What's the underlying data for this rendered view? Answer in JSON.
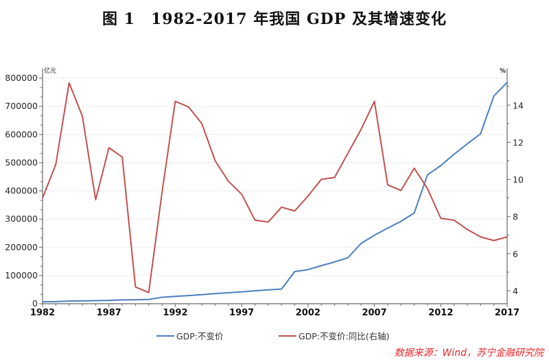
{
  "title": "图 1　1982-2017 年我国 GDP 及其增速变化",
  "source": "数据来源：Wind，苏宁金融研究院",
  "chart_data": {
    "type": "line",
    "title": "图 1　1982-2017 年我国 GDP 及其增速变化",
    "x": [
      1982,
      1983,
      1984,
      1985,
      1986,
      1987,
      1988,
      1989,
      1990,
      1991,
      1992,
      1993,
      1994,
      1995,
      1996,
      1997,
      1998,
      1999,
      2000,
      2001,
      2002,
      2003,
      2004,
      2005,
      2006,
      2007,
      2008,
      2009,
      2010,
      2011,
      2012,
      2013,
      2014,
      2015,
      2016,
      2017
    ],
    "x_ticks": [
      "1982",
      "1987",
      "1992",
      "1997",
      "2002",
      "2007",
      "2012",
      "2017"
    ],
    "xlim": [
      1982,
      2017
    ],
    "left_axis": {
      "unit": "亿元",
      "ylim": [
        0,
        800000
      ],
      "ticks": [
        "0",
        "100000",
        "200000",
        "300000",
        "400000",
        "500000",
        "600000",
        "700000",
        "800000"
      ]
    },
    "right_axis": {
      "unit": "%",
      "ylim": [
        3.3,
        15.45
      ],
      "ticks": [
        "4",
        "6",
        "8",
        "10",
        "12",
        "14"
      ]
    },
    "grid": true,
    "legend_position": "bottom",
    "series": [
      {
        "name": "GDP:不变价",
        "axis": "left",
        "color": "#4a7ebf",
        "values": [
          7000,
          7500,
          9500,
          10000,
          11000,
          12000,
          13500,
          14000,
          15000,
          23000,
          26000,
          29000,
          32000,
          36000,
          39000,
          42000,
          46000,
          49000,
          52000,
          114000,
          121000,
          135000,
          148000,
          163000,
          214000,
          243000,
          268000,
          292000,
          322000,
          457000,
          490000,
          530000,
          567000,
          603000,
          737000,
          785000
        ]
      },
      {
        "name": "GDP:不变价:同比(右轴)",
        "axis": "right",
        "color": "#c0504d",
        "values": [
          9.0,
          10.8,
          15.2,
          13.4,
          8.9,
          11.7,
          11.2,
          4.2,
          3.9,
          9.3,
          14.2,
          13.9,
          13.0,
          11.0,
          9.9,
          9.2,
          7.8,
          7.7,
          8.5,
          8.3,
          9.1,
          10.0,
          10.1,
          11.4,
          12.7,
          14.2,
          9.7,
          9.4,
          10.6,
          9.5,
          7.9,
          7.8,
          7.3,
          6.9,
          6.7,
          6.9
        ]
      }
    ]
  }
}
